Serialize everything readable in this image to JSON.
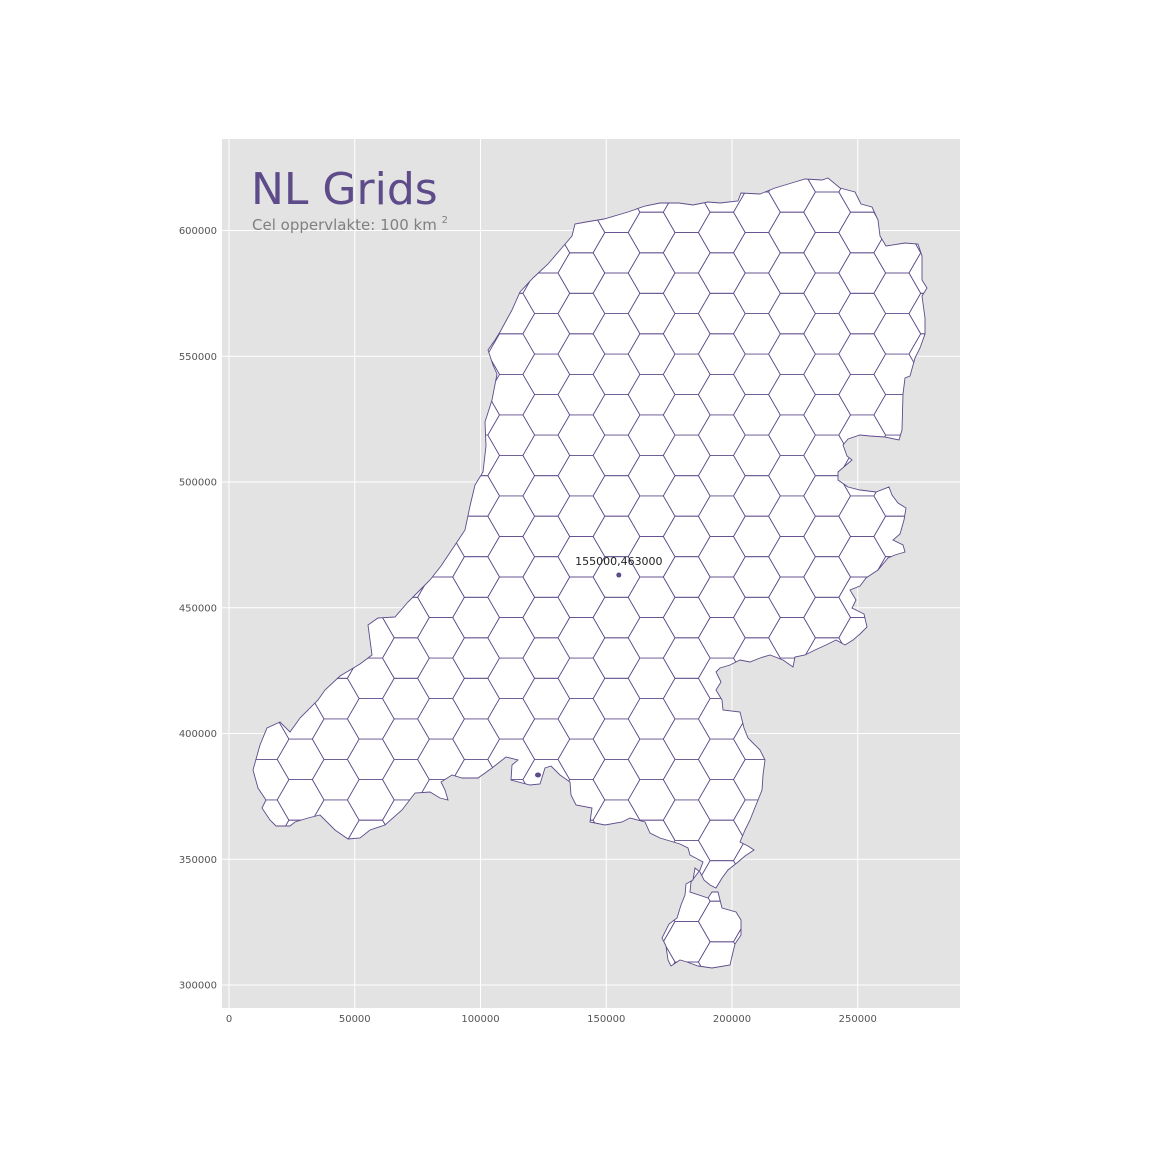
{
  "map": {
    "title": "NL Grids",
    "subtitle_prefix": "Cel oppervlakte: 100 km",
    "subtitle_superscript": "2",
    "cell_area_km2": 100,
    "cell_shape": "hexagon",
    "x_ticks": [
      "0",
      "50000",
      "100000",
      "150000",
      "200000",
      "250000"
    ],
    "x_tick_values": [
      0,
      50000,
      100000,
      150000,
      200000,
      250000
    ],
    "y_ticks": [
      "600000",
      "550000",
      "500000",
      "450000",
      "400000",
      "350000",
      "300000"
    ],
    "y_tick_values": [
      600000,
      550000,
      500000,
      450000,
      400000,
      350000,
      300000
    ],
    "x_range": [
      -2500,
      290000
    ],
    "y_range": [
      291000,
      637000
    ],
    "grid": true,
    "marker": {
      "label": "155000,463000",
      "x": 155000,
      "y": 463000
    },
    "colors": {
      "panel": "#e3e3e3",
      "gridline": "#ffffff",
      "land": "#ffffff",
      "cell_border": "#5d4b8a",
      "title": "#5d4b8a",
      "subtitle": "#808080",
      "marker": "#5d4b8a"
    }
  }
}
